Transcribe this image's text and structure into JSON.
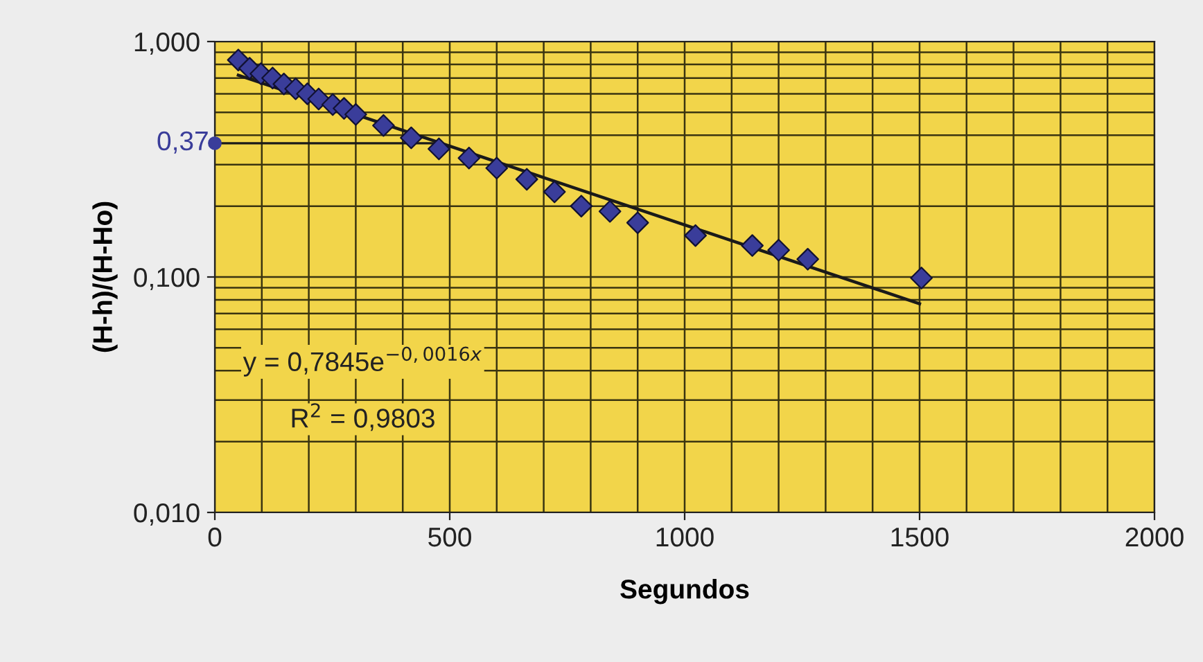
{
  "chart_data": {
    "type": "scatter",
    "xlabel": "Segundos",
    "ylabel": "(H-h)/(H-Ho)",
    "log": "y",
    "xlim": [
      0,
      2000
    ],
    "xticks": [
      0,
      500,
      1000,
      1500,
      2000
    ],
    "ylim": [
      0.01,
      1
    ],
    "yticks": [
      {
        "value": 0.01,
        "label": "0,010"
      },
      {
        "value": 0.1,
        "label": "0,100"
      },
      {
        "value": 1,
        "label": "1,000"
      }
    ],
    "grid": true,
    "series": [
      {
        "marker": "diamond",
        "color": "#3a3d9a",
        "x": [
          50,
          74,
          98,
          123,
          147,
          172,
          197,
          221,
          251,
          275,
          300,
          359,
          418,
          477,
          541,
          600,
          664,
          723,
          780,
          841,
          900,
          1023,
          1144,
          1200,
          1262,
          1504
        ],
        "values": [
          0.835,
          0.77,
          0.73,
          0.7,
          0.66,
          0.63,
          0.6,
          0.57,
          0.54,
          0.52,
          0.49,
          0.44,
          0.39,
          0.35,
          0.32,
          0.29,
          0.26,
          0.23,
          0.2,
          0.19,
          0.17,
          0.15,
          0.136,
          0.13,
          0.119,
          0.099
        ]
      },
      {
        "type": "line",
        "marker": "none",
        "color": "#1a1a1a",
        "x": [
          50,
          1500
        ],
        "values": [
          0.72,
          0.077
        ]
      },
      {
        "marker": "circle",
        "color": "#3a3d9a",
        "x": [
          0
        ],
        "values": [
          0.37
        ],
        "value_labels": [
          "0,37"
        ]
      }
    ],
    "ref_lines": [
      {
        "axis": "y",
        "value": 0.37,
        "color": "#1a1a1a"
      }
    ],
    "annotations": [
      "y = 0,7845e$^{−0,0016x}$",
      "R$^{2}$ = 0,9803"
    ]
  }
}
